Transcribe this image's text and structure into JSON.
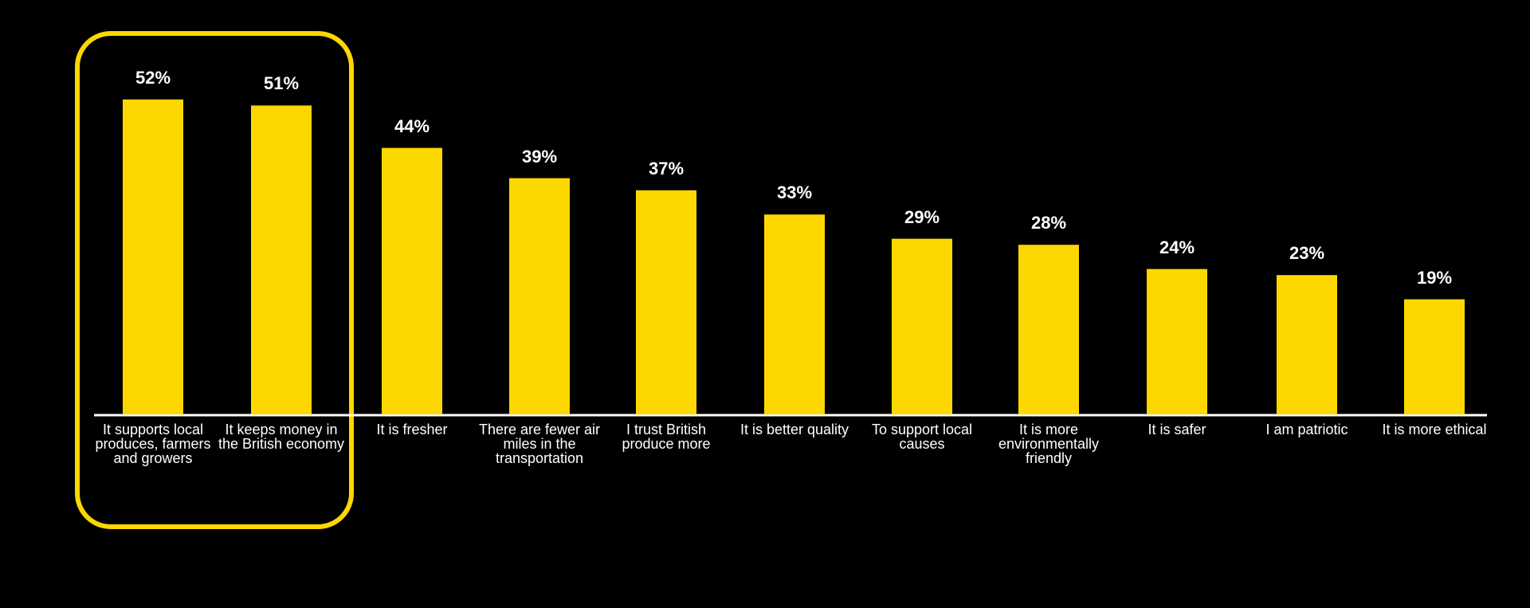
{
  "chart_data": {
    "type": "bar",
    "categories": [
      "It supports local produces, farmers and growers",
      "It keeps money in the British economy",
      "It is fresher",
      "There are fewer air miles in the transportation",
      "I trust British produce more",
      "It is better quality",
      "To support local causes",
      "It is more environmentally friendly",
      "It is safer",
      "I am patriotic",
      "It is more ethical"
    ],
    "values": [
      52,
      51,
      44,
      39,
      37,
      33,
      29,
      28,
      24,
      23,
      19
    ],
    "value_labels": [
      "52%",
      "51%",
      "44%",
      "39%",
      "37%",
      "33%",
      "29%",
      "28%",
      "24%",
      "23%",
      "19%"
    ],
    "color": "#fcd800"
  }
}
